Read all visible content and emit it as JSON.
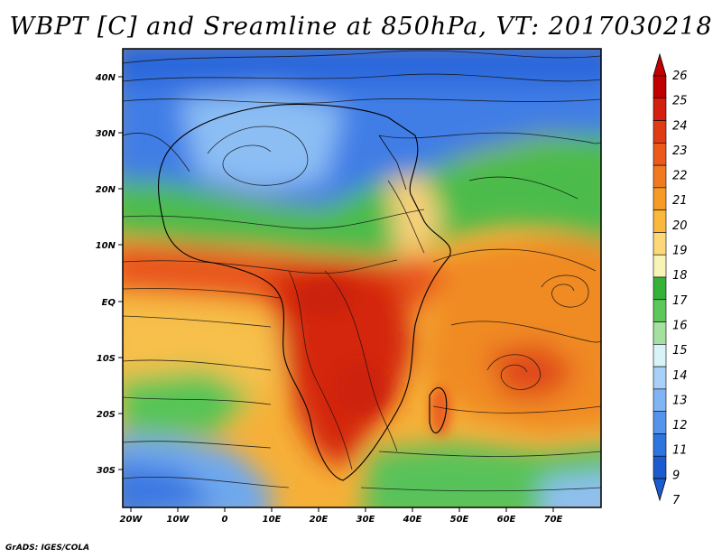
{
  "title": "WBPT [C] and Sreamline at 850hPa, VT: 2017030218",
  "credit": "GrADS: IGES/COLA",
  "lat_labels": [
    "40N",
    "30N",
    "20N",
    "10N",
    "EQ",
    "10S",
    "20S",
    "30S"
  ],
  "lon_labels": [
    "20W",
    "10W",
    "0",
    "10E",
    "20E",
    "30E",
    "40E",
    "50E",
    "60E",
    "70E"
  ],
  "colorbar": {
    "labels": [
      "26",
      "25",
      "24",
      "23",
      "22",
      "21",
      "20",
      "19",
      "18",
      "17",
      "16",
      "15",
      "14",
      "13",
      "12",
      "11",
      "9",
      "7"
    ],
    "colors": [
      "#c00000",
      "#d42010",
      "#e03c14",
      "#ec5a1a",
      "#f07a20",
      "#f89a28",
      "#fab83c",
      "#fcd878",
      "#f8f4b8",
      "#36b23a",
      "#5cc85c",
      "#a4e0a0",
      "#d8f4f8",
      "#a8d0f8",
      "#80b4f4",
      "#5494ec",
      "#2c74e0",
      "#1c5ad0"
    ]
  }
}
